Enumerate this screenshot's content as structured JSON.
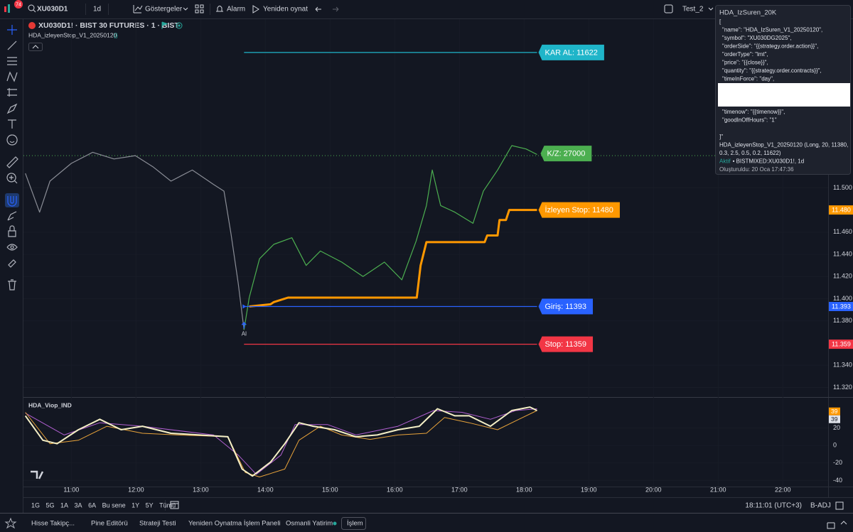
{
  "toolbar": {
    "badge": "74",
    "symbol": "XU030D1",
    "interval": "1d",
    "indicators": "Göstergeler",
    "alert": "Alarm",
    "replay": "Yeniden oynat",
    "layout": "Test_2"
  },
  "legend": {
    "symbol": "XU030D1! · BIST 30 FUTURES · 1 · BIST",
    "strategy": "HDA_izleyenStop_V1_20250120"
  },
  "price_chart": {
    "xlim": [
      10.26,
      22.7
    ],
    "xticks": [
      {
        "value": 11,
        "label": "11:00"
      },
      {
        "value": 12,
        "label": "12:00"
      },
      {
        "value": 13,
        "label": "13:00"
      },
      {
        "value": 14,
        "label": "14:00"
      },
      {
        "value": 15,
        "label": "15:00"
      },
      {
        "value": 16,
        "label": "16:00"
      },
      {
        "value": 17,
        "label": "17:00"
      },
      {
        "value": 18,
        "label": "18:00"
      },
      {
        "value": 19,
        "label": "19:00"
      },
      {
        "value": 20,
        "label": "20:00"
      },
      {
        "value": 21,
        "label": "21:00"
      },
      {
        "value": 22,
        "label": "22:00"
      }
    ],
    "ylim": [
      11312,
      11652
    ],
    "yticks": [
      {
        "value": 11500,
        "label": "11.500"
      },
      {
        "value": 11460,
        "label": "11.460"
      },
      {
        "value": 11440,
        "label": "11.440"
      },
      {
        "value": 11420,
        "label": "11.420"
      },
      {
        "value": 11400,
        "label": "11.400"
      },
      {
        "value": 11380,
        "label": "11.380"
      },
      {
        "value": 11340,
        "label": "11.340"
      },
      {
        "value": 11320,
        "label": "11.320"
      }
    ],
    "price_before_entry": {
      "color": "#8a8d96",
      "x": [
        10.29,
        10.51,
        10.67,
        11,
        11.33,
        11.66,
        11.99,
        12.26,
        12.54,
        12.87,
        13.2,
        13.36,
        13.47,
        13.58,
        13.67
      ],
      "values": [
        11513,
        11478,
        11506,
        11522,
        11532,
        11526,
        11529,
        11519,
        11506,
        11516,
        11503,
        11497,
        11458,
        11414,
        11372
      ]
    },
    "price_after_entry": {
      "color": "#4caf50",
      "x": [
        13.67,
        13.75,
        13.91,
        14.13,
        14.41,
        14.63,
        14.85,
        15.18,
        15.51,
        15.84,
        16.11,
        16.33,
        16.49,
        16.58,
        16.71,
        16.93,
        17.21,
        17.37,
        17.59,
        17.81,
        18.03,
        18.2
      ],
      "values": [
        11372,
        11401,
        11436,
        11449,
        11455,
        11430,
        11443,
        11433,
        11420,
        11433,
        11417,
        11452,
        11484,
        11516,
        11484,
        11478,
        11468,
        11497,
        11516,
        11538,
        11535,
        11530
      ]
    },
    "trailing_stop": {
      "color": "#ff9800",
      "x": [
        13.75,
        14.08,
        14.13,
        14.35,
        16.34,
        16.4,
        16.49,
        17.39,
        17.43,
        17.59,
        17.62,
        17.72,
        17.77,
        18.2
      ],
      "values": [
        11393,
        11395,
        11397,
        11401,
        11401,
        11430,
        11451,
        11451,
        11457,
        11457,
        11471,
        11471,
        11480,
        11480
      ]
    },
    "last_price": {
      "value": 11529,
      "color": "#4caf50"
    },
    "levels": [
      {
        "label": "KAR AL: 11622",
        "value": 11622,
        "color": "#1fb5c9",
        "from": 13.67,
        "to": 18.2
      },
      {
        "label": "İzleyen Stop: 11480",
        "value": 11480,
        "color": "#ff9800",
        "from": 18.2,
        "to": 18.2
      },
      {
        "label": "Giriş: 11393",
        "value": 11393,
        "color": "#2962ff",
        "from": 13.67,
        "to": 18.2
      },
      {
        "label": "Stop: 11359",
        "value": 11359,
        "color": "#f23645",
        "from": 13.67,
        "to": 18.2
      }
    ],
    "pnl_label": {
      "label": "K/Z: 27000",
      "color": "#4caf50"
    },
    "axis_badges": [
      {
        "value": 11480,
        "label": "11.480",
        "color": "#ff9800"
      },
      {
        "value": 11393,
        "label": "11.393",
        "color": "#2962ff"
      },
      {
        "value": 11359,
        "label": "11.359",
        "color": "#f23645"
      }
    ],
    "entry_marker": {
      "label": "Al",
      "x": 13.67,
      "value": 11372
    }
  },
  "oscillator": {
    "title": "HDA_Viop_IND",
    "ylim": [
      -47,
      53
    ],
    "yticks": [
      20,
      0,
      -20,
      -40
    ],
    "badges": [
      {
        "value": 39,
        "label": "39",
        "color": "#ff9800"
      },
      {
        "value": 39,
        "label": "39",
        "color": "#e0e3eb"
      }
    ],
    "series": [
      {
        "color": "#b05fd0",
        "x": [
          10.29,
          10.89,
          11.44,
          12.1,
          13.2,
          13.58,
          13.86,
          14.24,
          14.46,
          14.96,
          15.4,
          16.05,
          16.6,
          17.04,
          17.48,
          17.87,
          18.2
        ],
        "values": [
          37,
          12,
          26,
          22,
          12,
          -11,
          -33,
          -11,
          24,
          24,
          12,
          22,
          40,
          38,
          30,
          40,
          42
        ]
      },
      {
        "color": "#e8a33a",
        "x": [
          10.29,
          10.67,
          11.11,
          11.55,
          12.1,
          12.65,
          13.42,
          13.69,
          13.91,
          14.3,
          14.52,
          14.85,
          15.18,
          15.62,
          16.05,
          16.49,
          16.77,
          17.15,
          17.59,
          17.92,
          18.2
        ],
        "values": [
          38,
          2,
          6,
          22,
          14,
          12,
          10,
          -31,
          -36,
          -27,
          6,
          22,
          12,
          7,
          12,
          14,
          32,
          26,
          18,
          30,
          40
        ]
      },
      {
        "color": "#f4efc6",
        "x": [
          10.29,
          10.56,
          10.78,
          11.11,
          11.44,
          11.77,
          12.1,
          12.54,
          12.98,
          13.42,
          13.64,
          13.8,
          14.08,
          14.3,
          14.52,
          14.74,
          15.07,
          15.4,
          15.73,
          16.05,
          16.38,
          16.66,
          16.93,
          17.15,
          17.48,
          17.81,
          18.09,
          18.2
        ],
        "values": [
          34,
          6,
          2,
          18,
          30,
          18,
          22,
          14,
          12,
          10,
          -27,
          -35,
          -19,
          2,
          26,
          22,
          18,
          10,
          12,
          18,
          22,
          42,
          34,
          34,
          22,
          40,
          44,
          40
        ]
      }
    ]
  },
  "alert_popup": {
    "title": "HDA_IzSuren_20K",
    "open": "[",
    "fields": [
      "\"name\": \"HDA_IzSuren_V1_20250120\",",
      "\"symbol\": \"XU030DG2025\",",
      "\"orderSide\": \"{{strategy.order.action}}\",",
      "\"orderType\": \"lmt\",",
      "\"price\": \"{{close}}\",",
      "\"quantity\": \"{{strategy.order.contracts}}\",",
      "\"timeInForce\": \"day\","
    ],
    "fields_after": [
      "\"timenow\": \"{{timenow}}\",",
      "\"goodInOffHours\": \"1\""
    ],
    "close": "]\"",
    "strategy": [
      "HDA_izleyenStop_V1_20250120 (Long, 20, 11380,",
      "0.3, 2.5, 0.5, 0.2, 11622)"
    ],
    "status": "Aktif",
    "target": "• BISTMIXED:XU030D1!, 1d",
    "created": "Oluşturuldu: 20 Oca 17:47:36"
  },
  "range_bar": {
    "ranges": [
      "1G",
      "5G",
      "1A",
      "3A",
      "6A",
      "Bu sene",
      "1Y",
      "5Y",
      "Tümü"
    ],
    "clock": "18:11:01 (UTC+3)",
    "adjust": "B-ADJ"
  },
  "bottom_tabs": [
    "Hisse Takipç...",
    "Pine Editörü",
    "Strateji Testi",
    "Yeniden Oynatma İşlem Paneli",
    "Osmanli Yatirim",
    "İşlem"
  ]
}
